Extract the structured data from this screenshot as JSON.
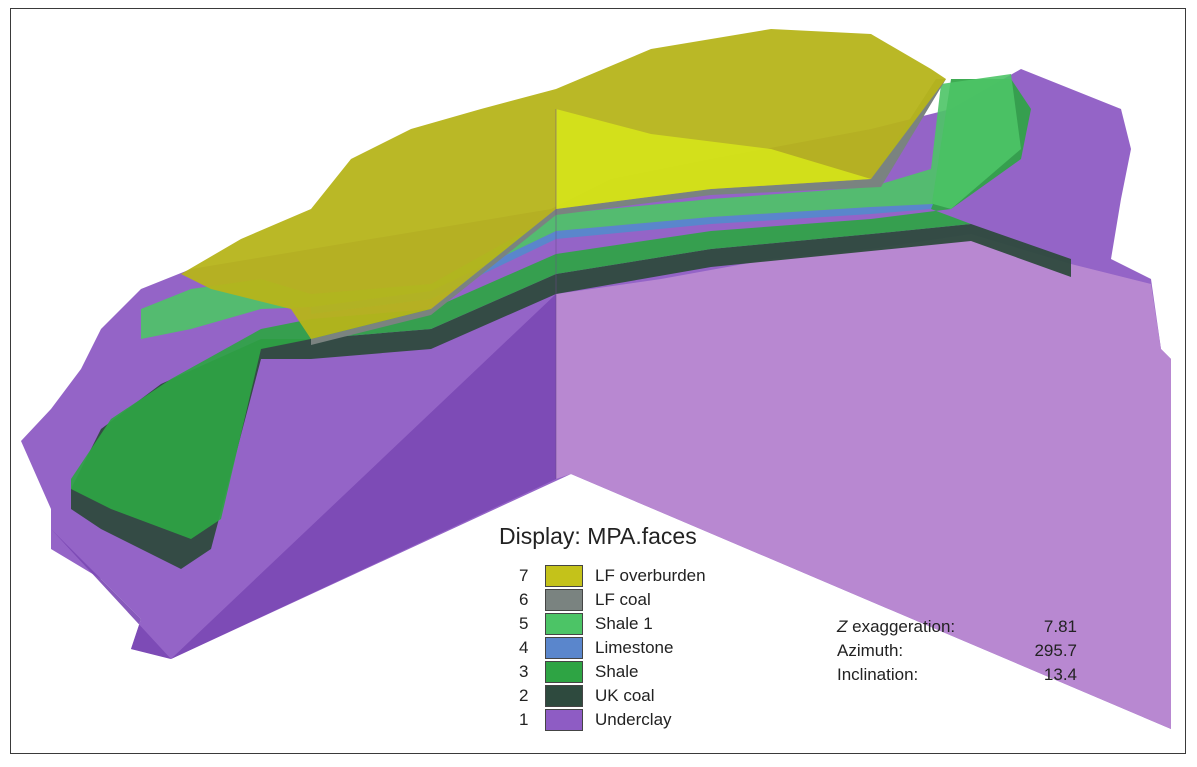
{
  "legend": {
    "title": "Display: MPA.faces",
    "items": [
      {
        "number": "7",
        "label": "LF overburden",
        "color": "#c4c21a"
      },
      {
        "number": "6",
        "label": "LF coal",
        "color": "#7a8380"
      },
      {
        "number": "5",
        "label": "Shale 1",
        "color": "#4cc466"
      },
      {
        "number": "4",
        "label": "Limestone",
        "color": "#5a86cc"
      },
      {
        "number": "3",
        "label": "Shale",
        "color": "#2ea444"
      },
      {
        "number": "2",
        "label": "UK coal",
        "color": "#2e4a3e"
      },
      {
        "number": "1",
        "label": "Underclay",
        "color": "#8e5cc4"
      }
    ]
  },
  "view": {
    "z_symbol": "Z",
    "z_label_rest": " exaggeration:",
    "z_value": "7.81",
    "azimuth_label": "Azimuth:",
    "azimuth_value": "295.7",
    "inclination_label": "Inclination:",
    "inclination_value": "13.4"
  }
}
